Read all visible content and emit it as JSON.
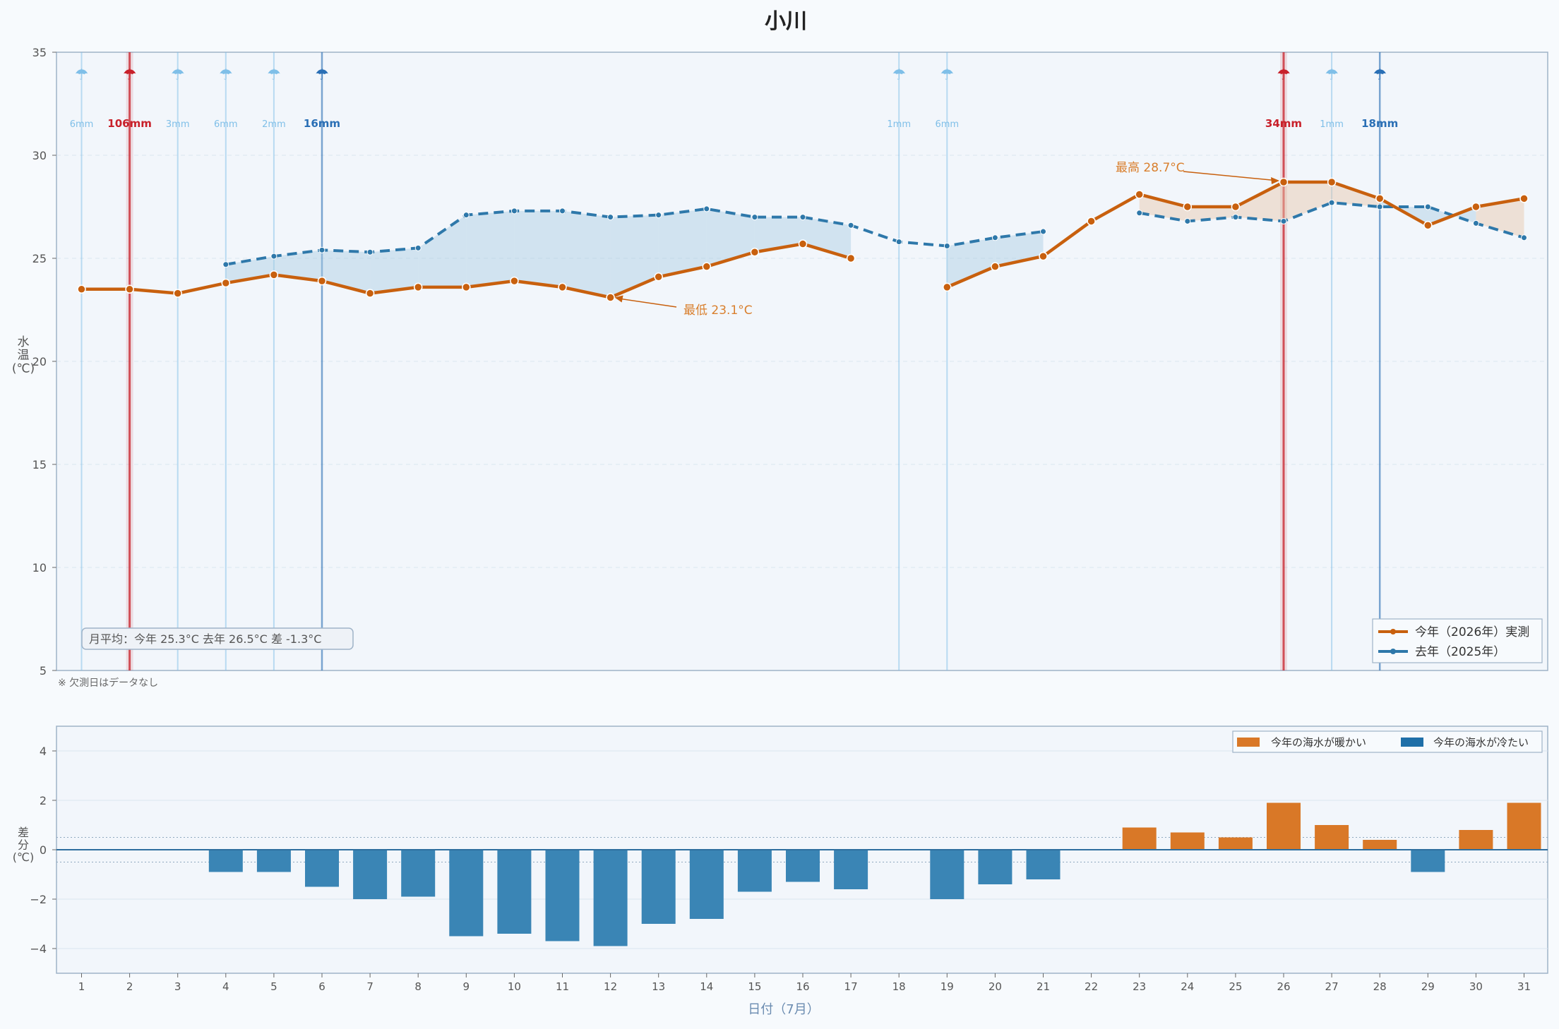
{
  "title": "小川",
  "note": "※ 欠測日はデータなし",
  "monthly_avg_text": "月平均：今年 25.3°C  去年 26.5°C  差 -1.3°C",
  "colors": {
    "this_year": "#c8600e",
    "last_year": "#2e78aa",
    "warm_bar": "#d97827",
    "cold_bar": "#3a85b5",
    "rain_light": "#7fbfe8",
    "rain_medium": "#2a6fb5",
    "rain_heavy": "#c8202a",
    "panel_bg": "#f2f6fb",
    "frame": "#9fb3c8"
  },
  "chart_data": [
    {
      "type": "line",
      "ylabel": "水温(℃)",
      "ylim": [
        5,
        35
      ],
      "yticks": [
        5,
        10,
        15,
        20,
        25,
        30,
        35
      ],
      "x": [
        1,
        2,
        3,
        4,
        5,
        6,
        7,
        8,
        9,
        10,
        11,
        12,
        13,
        14,
        15,
        16,
        17,
        18,
        19,
        20,
        21,
        22,
        23,
        24,
        25,
        26,
        27,
        28,
        29,
        30,
        31
      ],
      "series": [
        {
          "name": "今年（2026年）実測",
          "values": [
            23.5,
            23.5,
            23.3,
            23.8,
            24.2,
            23.9,
            23.3,
            23.6,
            23.6,
            23.9,
            23.6,
            23.1,
            24.1,
            24.6,
            25.3,
            25.7,
            25.0,
            null,
            23.6,
            24.6,
            25.1,
            26.8,
            28.1,
            27.5,
            27.5,
            28.7,
            28.7,
            27.9,
            26.6,
            27.5,
            27.9
          ]
        },
        {
          "name": "去年（2025年）",
          "values": [
            null,
            null,
            null,
            24.7,
            25.1,
            25.4,
            25.3,
            25.5,
            27.1,
            27.3,
            27.3,
            27.0,
            27.1,
            27.4,
            27.0,
            27.0,
            26.6,
            25.8,
            25.6,
            26.0,
            26.3,
            null,
            27.2,
            26.8,
            27.0,
            26.8,
            27.7,
            27.5,
            27.5,
            26.7,
            26.0
          ]
        }
      ],
      "annotations": [
        {
          "text": "最高 28.7°C",
          "x": 26,
          "y": 28.7
        },
        {
          "text": "最低 23.1°C",
          "x": 12,
          "y": 23.1
        }
      ],
      "rain": [
        {
          "day": 1,
          "label": "6mm",
          "level": "light"
        },
        {
          "day": 2,
          "label": "106mm",
          "level": "heavy"
        },
        {
          "day": 3,
          "label": "3mm",
          "level": "light"
        },
        {
          "day": 4,
          "label": "6mm",
          "level": "light"
        },
        {
          "day": 5,
          "label": "2mm",
          "level": "light"
        },
        {
          "day": 6,
          "label": "16mm",
          "level": "medium"
        },
        {
          "day": 18,
          "label": "1mm",
          "level": "light"
        },
        {
          "day": 19,
          "label": "6mm",
          "level": "light"
        },
        {
          "day": 26,
          "label": "34mm",
          "level": "heavy"
        },
        {
          "day": 27,
          "label": "1mm",
          "level": "light"
        },
        {
          "day": 28,
          "label": "18mm",
          "level": "medium"
        }
      ],
      "legend_position": "bottom-right"
    },
    {
      "type": "bar",
      "ylabel": "差分(℃)",
      "xlabel": "日付（7月）",
      "ylim": [
        -5,
        5
      ],
      "yticks": [
        -4,
        -2,
        0,
        2,
        4
      ],
      "categories": [
        "1",
        "2",
        "3",
        "4",
        "5",
        "6",
        "7",
        "8",
        "9",
        "10",
        "11",
        "12",
        "13",
        "14",
        "15",
        "16",
        "17",
        "18",
        "19",
        "20",
        "21",
        "22",
        "23",
        "24",
        "25",
        "26",
        "27",
        "28",
        "29",
        "30",
        "31"
      ],
      "values": [
        null,
        null,
        null,
        -0.9,
        -0.9,
        -1.5,
        -2.0,
        -1.9,
        -3.5,
        -3.4,
        -3.7,
        -3.9,
        -3.0,
        -2.8,
        -1.7,
        -1.3,
        -1.6,
        null,
        -2.0,
        -1.4,
        -1.2,
        null,
        0.9,
        0.7,
        0.5,
        1.9,
        1.0,
        0.4,
        -0.9,
        0.8,
        1.9
      ],
      "legend": [
        "今年の海水が暖かい",
        "今年の海水が冷たい"
      ],
      "legend_position": "top-right"
    }
  ]
}
